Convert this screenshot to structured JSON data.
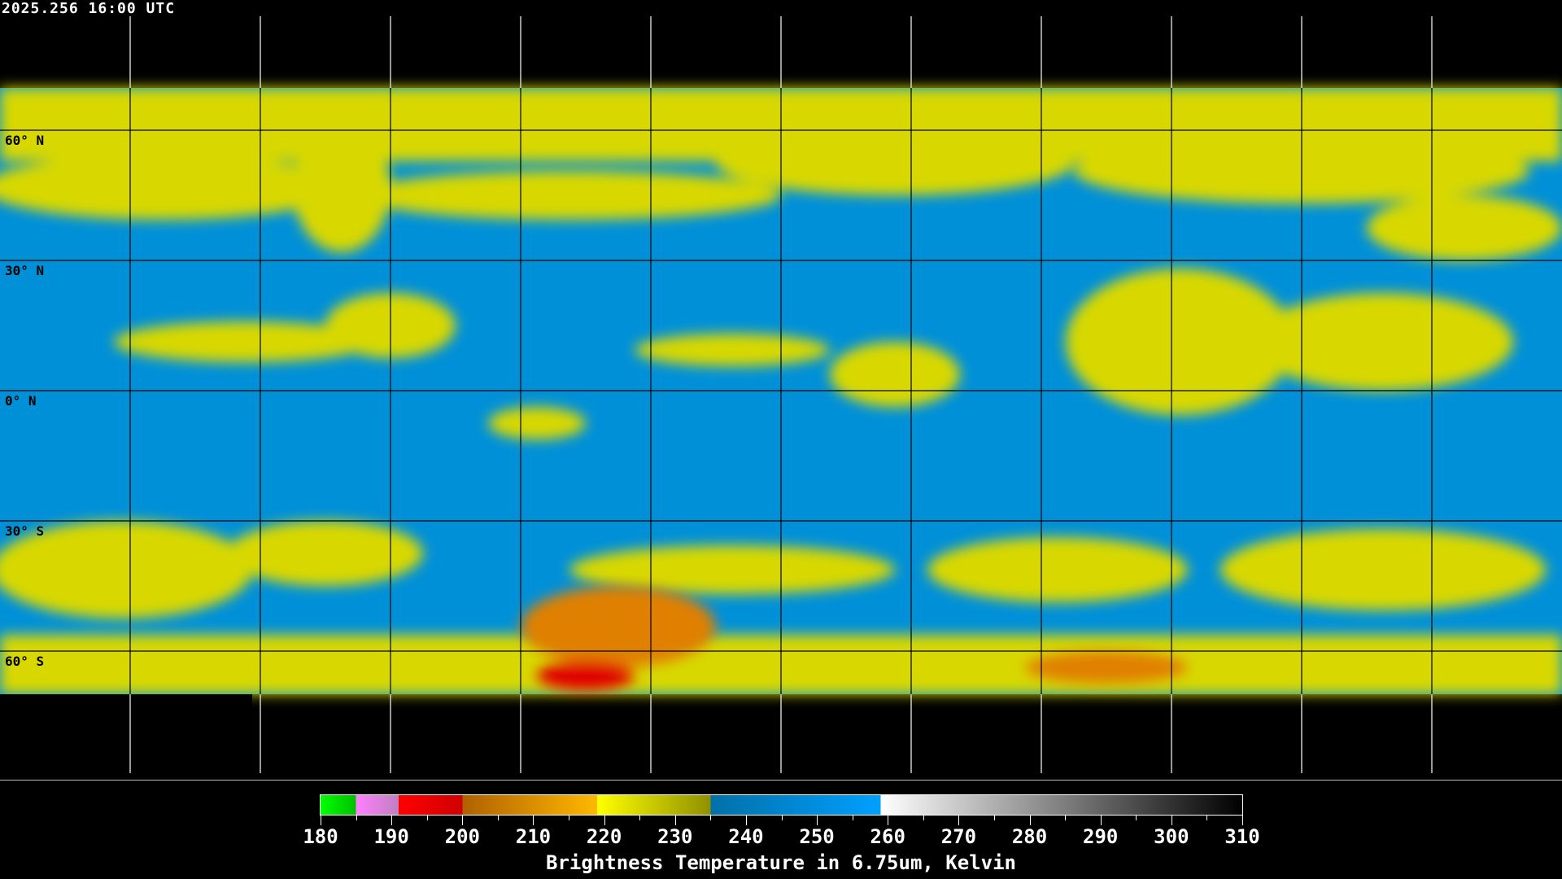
{
  "timestamp": "2025.256 16:00 UTC",
  "map": {
    "projection": "equirectangular",
    "latitude_labels": [
      "60° N",
      "30° N",
      "0° N",
      "30° S",
      "60° S"
    ],
    "colors": {
      "background": "#000000",
      "dry": "#0090d8",
      "moist": "#d8d800",
      "cold": "#e08000",
      "very_cold": "#e00000"
    }
  },
  "colorbar": {
    "min": 180,
    "max": 310,
    "tick_labels": [
      "180",
      "190",
      "200",
      "210",
      "220",
      "230",
      "240",
      "250",
      "260",
      "270",
      "280",
      "290",
      "300",
      "310"
    ],
    "segments": [
      {
        "from": 180,
        "to": 185,
        "colors": [
          "#00ff00",
          "#00c000"
        ]
      },
      {
        "from": 185,
        "to": 191,
        "colors": [
          "#ff80ff",
          "#c080c0"
        ]
      },
      {
        "from": 191,
        "to": 200,
        "colors": [
          "#ff0000",
          "#d00000"
        ]
      },
      {
        "from": 200,
        "to": 219,
        "colors": [
          "#b06000",
          "#ffb800"
        ]
      },
      {
        "from": 219,
        "to": 235,
        "colors": [
          "#ffff00",
          "#909000"
        ]
      },
      {
        "from": 235,
        "to": 259,
        "colors": [
          "#0070a8",
          "#00a0ff"
        ]
      },
      {
        "from": 259,
        "to": 310,
        "colors": [
          "#ffffff",
          "#000000"
        ]
      }
    ],
    "title": "Brightness Temperature in 6.75um, Kelvin"
  }
}
